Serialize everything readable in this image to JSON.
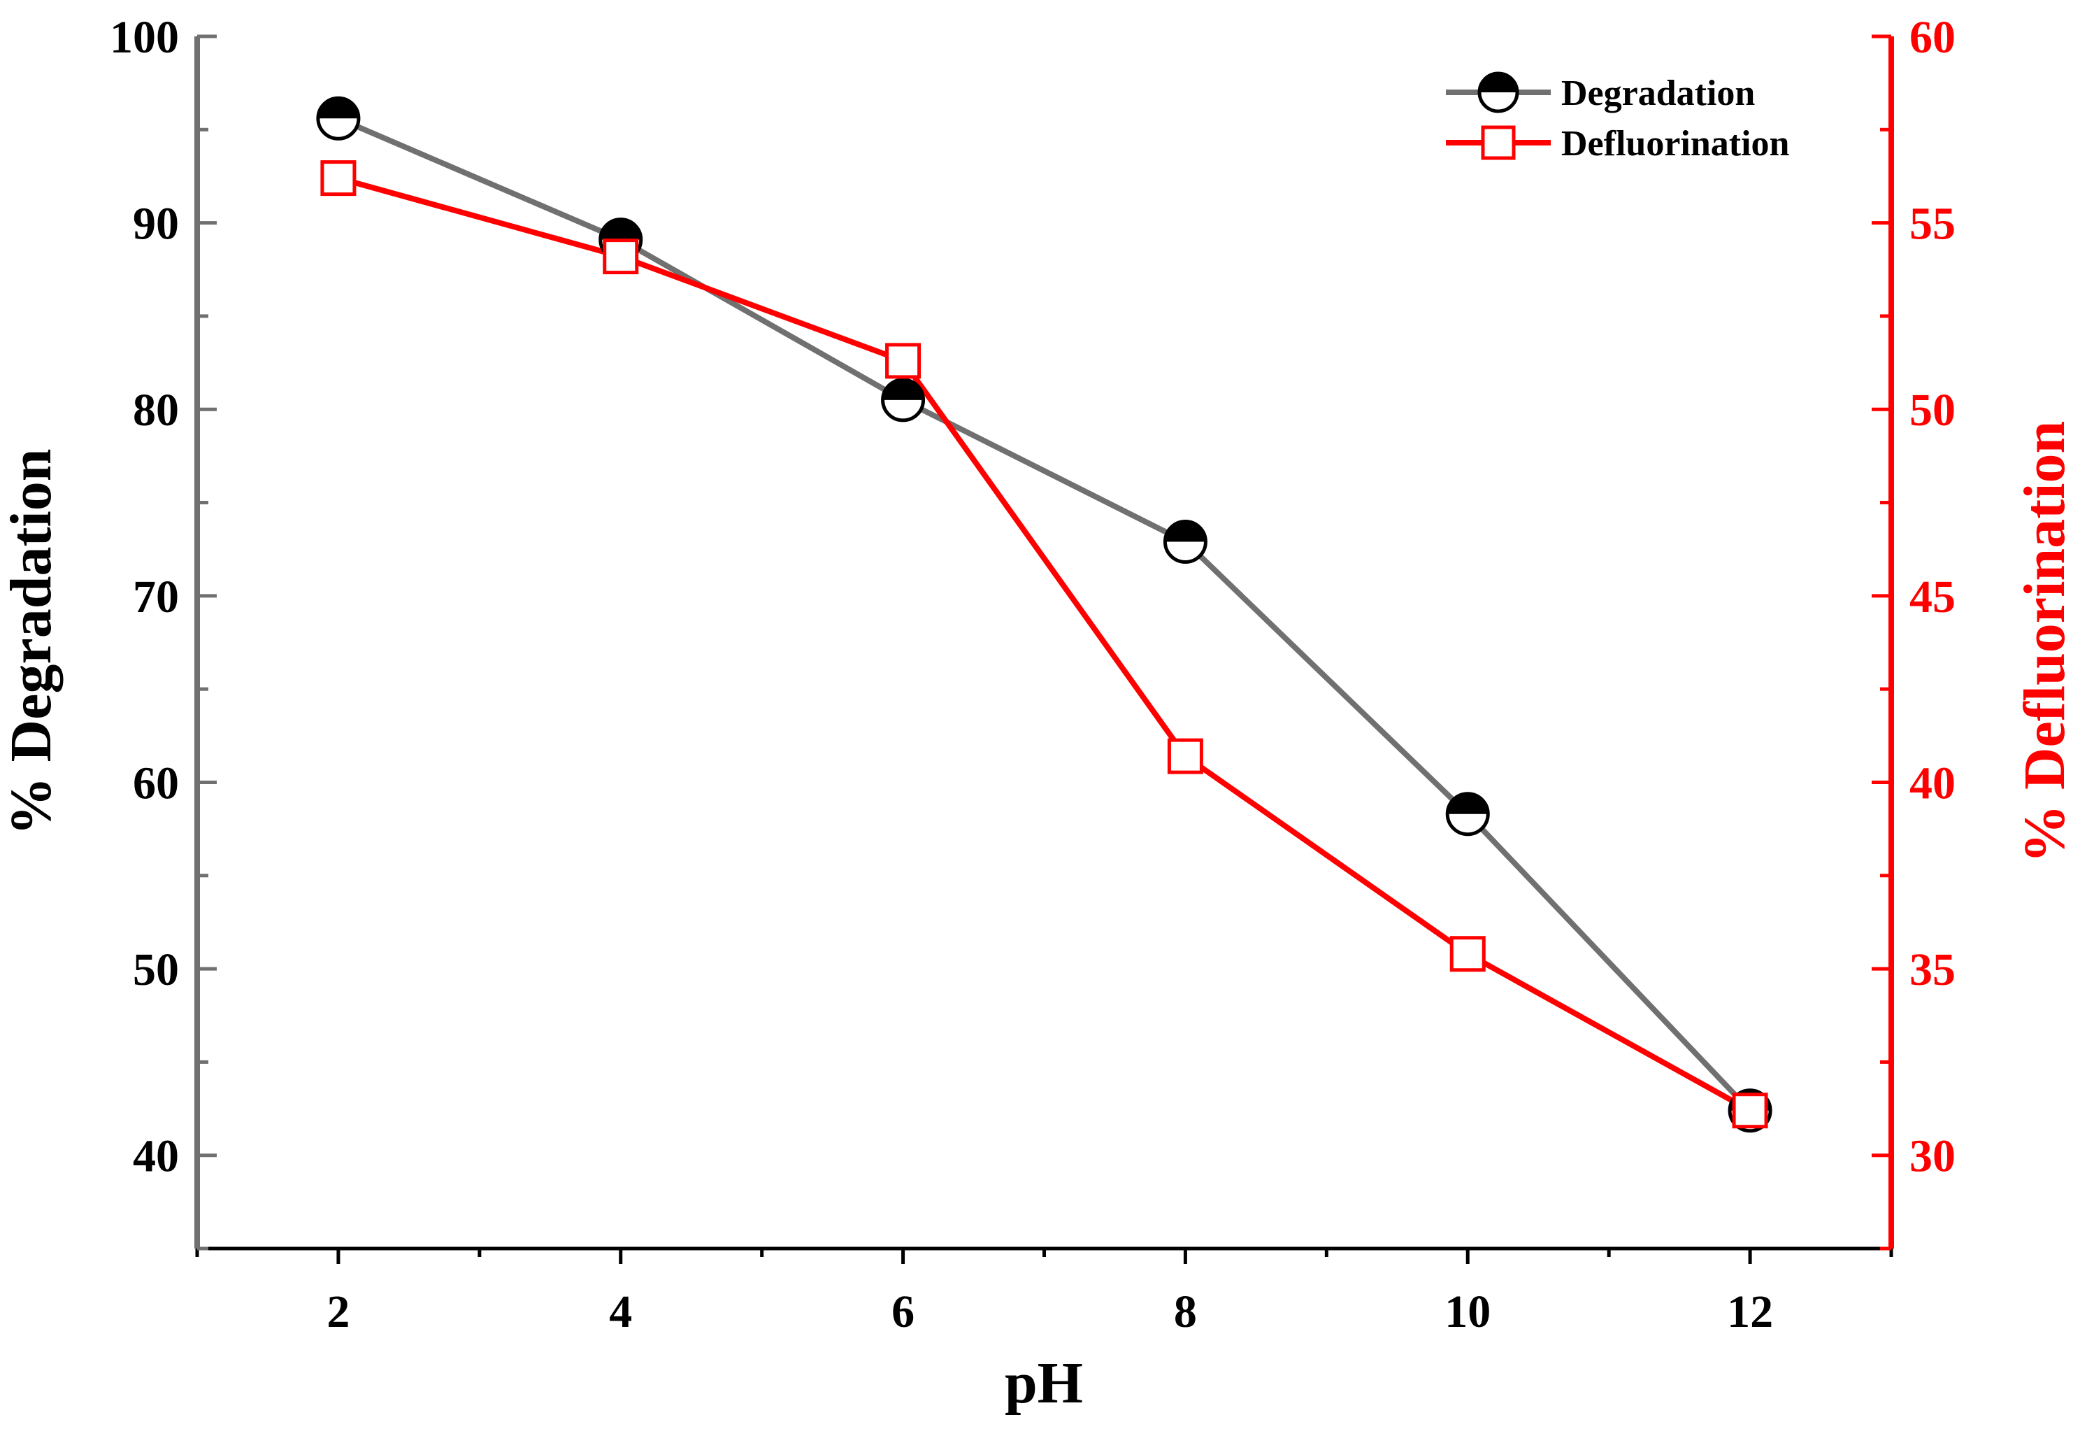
{
  "chart_data": {
    "type": "line",
    "xlabel": "pH",
    "ylabel_left": "% Degradation",
    "ylabel_right": "% Defluorination",
    "xlim": [
      1,
      13
    ],
    "ylim_left": [
      35,
      100
    ],
    "ylim_right": [
      27.5,
      60
    ],
    "x_ticks": [
      2,
      4,
      6,
      8,
      10,
      12
    ],
    "x_tick_labels": [
      "2",
      "4",
      "6",
      "8",
      "10",
      "12"
    ],
    "y_left_ticks": [
      40,
      50,
      60,
      70,
      80,
      90,
      100
    ],
    "y_left_tick_labels": [
      "40",
      "50",
      "60",
      "70",
      "80",
      "90",
      "100"
    ],
    "y_right_ticks": [
      30,
      35,
      40,
      45,
      50,
      55,
      60
    ],
    "y_right_tick_labels": [
      "30",
      "35",
      "40",
      "45",
      "50",
      "55",
      "60"
    ],
    "x": [
      2,
      4,
      6,
      8,
      10,
      12
    ],
    "series": [
      {
        "name": "Degradation",
        "axis": "left",
        "color": "#707070",
        "marker": "half-filled-circle",
        "values": [
          95.6,
          89.1,
          80.5,
          72.9,
          58.3,
          42.4
        ]
      },
      {
        "name": "Defluorination",
        "axis": "right",
        "color": "#ff0000",
        "marker": "open-square",
        "values": [
          56.2,
          54.1,
          51.3,
          40.7,
          35.4,
          31.2
        ]
      }
    ],
    "legend": {
      "position": "top-right",
      "labels": [
        "Degradation",
        "Defluorination"
      ]
    },
    "colors": {
      "left_axis": "#707070",
      "right_axis": "#ff0000",
      "text_left": "#000000",
      "text_right": "#ff0000"
    }
  }
}
